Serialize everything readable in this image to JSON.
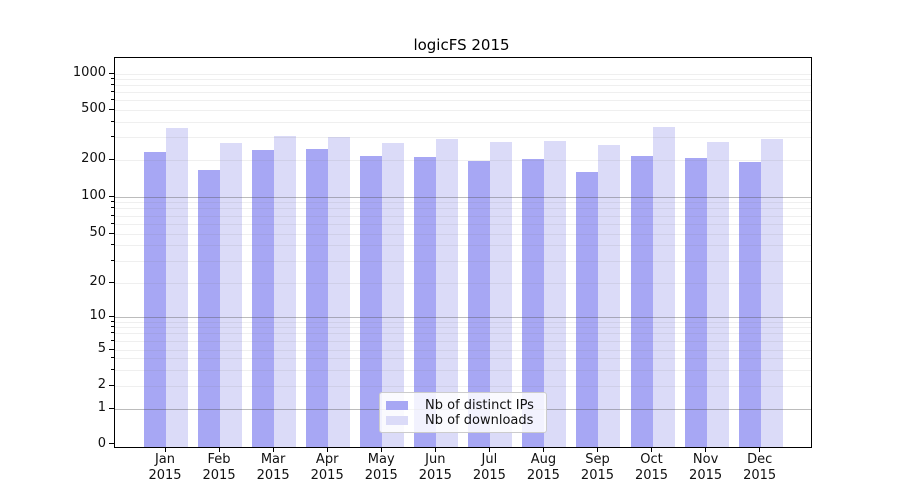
{
  "chart_data": {
    "type": "bar",
    "title": "logicFS 2015",
    "categories": [
      "Jan",
      "Feb",
      "Mar",
      "Apr",
      "May",
      "Jun",
      "Jul",
      "Aug",
      "Sep",
      "Oct",
      "Nov",
      "Dec"
    ],
    "year_label": "2015",
    "series": [
      {
        "name": "Nb of distinct IPs",
        "color": "#a7a7f4",
        "values": [
          232,
          166,
          239,
          243,
          217,
          212,
          196,
          205,
          160,
          215,
          206,
          193
        ]
      },
      {
        "name": "Nb of downloads",
        "color": "#dbdbf8",
        "values": [
          362,
          275,
          310,
          306,
          271,
          296,
          280,
          283,
          263,
          367,
          278,
          293
        ]
      }
    ],
    "y_axis": {
      "scale": "log-like (1-2-5 ticks, includes 0)",
      "tick_labels": [
        "1000",
        "500",
        "200",
        "100",
        "50",
        "20",
        "10",
        "5",
        "2",
        "1",
        "0"
      ],
      "tick_values": [
        1000,
        500,
        200,
        100,
        50,
        20,
        10,
        5,
        2,
        1,
        0
      ],
      "major_grid": [
        1,
        10,
        100
      ],
      "minor_grid": [
        2,
        3,
        4,
        5,
        6,
        7,
        8,
        9,
        20,
        30,
        40,
        50,
        60,
        70,
        80,
        90,
        200,
        300,
        400,
        500,
        600,
        700,
        800,
        900,
        1000
      ]
    },
    "grid": true,
    "legend_position": "lower center"
  }
}
